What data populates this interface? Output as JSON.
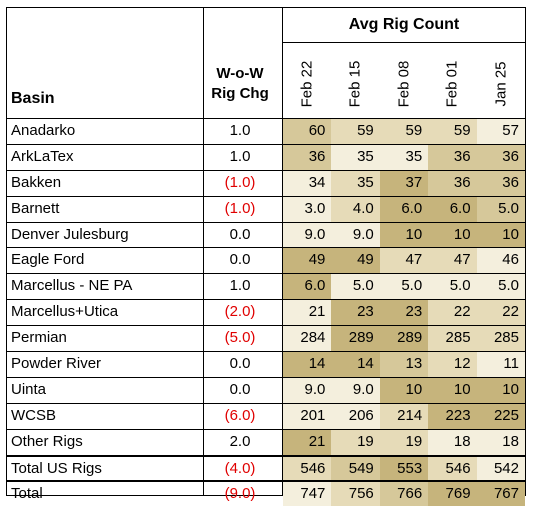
{
  "header": {
    "basin": "Basin",
    "chg_line1": "W-o-W",
    "chg_line2": "Rig Chg",
    "avg": "Avg Rig Count",
    "dates": [
      "Feb 22",
      "Feb 15",
      "Feb 08",
      "Feb 01",
      "Jan 25"
    ]
  },
  "rows": [
    {
      "basin": "Anadarko",
      "chg": "1.0",
      "neg": false,
      "vals": [
        "60",
        "59",
        "59",
        "59",
        "57"
      ],
      "shade": [
        3,
        2,
        2,
        2,
        1
      ]
    },
    {
      "basin": "ArkLaTex",
      "chg": "1.0",
      "neg": false,
      "vals": [
        "36",
        "35",
        "35",
        "36",
        "36"
      ],
      "shade": [
        3,
        1,
        1,
        3,
        3
      ]
    },
    {
      "basin": "Bakken",
      "chg": "(1.0)",
      "neg": true,
      "vals": [
        "34",
        "35",
        "37",
        "36",
        "36"
      ],
      "shade": [
        1,
        2,
        4,
        3,
        3
      ]
    },
    {
      "basin": "Barnett",
      "chg": "(1.0)",
      "neg": true,
      "vals": [
        "3.0",
        "4.0",
        "6.0",
        "6.0",
        "5.0"
      ],
      "shade": [
        1,
        2,
        4,
        4,
        3
      ]
    },
    {
      "basin": "Denver Julesburg",
      "chg": "0.0",
      "neg": false,
      "vals": [
        "9.0",
        "9.0",
        "10",
        "10",
        "10"
      ],
      "shade": [
        1,
        1,
        4,
        4,
        4
      ]
    },
    {
      "basin": "Eagle Ford",
      "chg": "0.0",
      "neg": false,
      "vals": [
        "49",
        "49",
        "47",
        "47",
        "46"
      ],
      "shade": [
        4,
        4,
        2,
        2,
        1
      ]
    },
    {
      "basin": "Marcellus - NE PA",
      "chg": "1.0",
      "neg": false,
      "vals": [
        "6.0",
        "5.0",
        "5.0",
        "5.0",
        "5.0"
      ],
      "shade": [
        4,
        1,
        1,
        1,
        1
      ]
    },
    {
      "basin": "Marcellus+Utica",
      "chg": "(2.0)",
      "neg": true,
      "vals": [
        "21",
        "23",
        "23",
        "22",
        "22"
      ],
      "shade": [
        1,
        4,
        4,
        2,
        2
      ]
    },
    {
      "basin": "Permian",
      "chg": "(5.0)",
      "neg": true,
      "vals": [
        "284",
        "289",
        "289",
        "285",
        "285"
      ],
      "shade": [
        1,
        4,
        4,
        2,
        2
      ]
    },
    {
      "basin": "Powder River",
      "chg": "0.0",
      "neg": false,
      "vals": [
        "14",
        "14",
        "13",
        "12",
        "11"
      ],
      "shade": [
        4,
        4,
        3,
        2,
        1
      ]
    },
    {
      "basin": "Uinta",
      "chg": "0.0",
      "neg": false,
      "vals": [
        "9.0",
        "9.0",
        "10",
        "10",
        "10"
      ],
      "shade": [
        1,
        1,
        4,
        4,
        4
      ]
    },
    {
      "basin": "WCSB",
      "chg": "(6.0)",
      "neg": true,
      "vals": [
        "201",
        "206",
        "214",
        "223",
        "225"
      ],
      "shade": [
        1,
        1,
        2,
        4,
        4
      ]
    },
    {
      "basin": "Other Rigs",
      "chg": "2.0",
      "neg": false,
      "vals": [
        "21",
        "19",
        "19",
        "18",
        "18"
      ],
      "shade": [
        4,
        2,
        2,
        1,
        1
      ]
    },
    {
      "basin": "Total US Rigs",
      "chg": "(4.0)",
      "neg": true,
      "vals": [
        "546",
        "549",
        "553",
        "546",
        "542"
      ],
      "shade": [
        2,
        3,
        4,
        2,
        1
      ]
    },
    {
      "basin": "Total",
      "chg": "(9.0)",
      "neg": true,
      "vals": [
        "747",
        "756",
        "766",
        "769",
        "767"
      ],
      "shade": [
        1,
        2,
        3,
        4,
        4
      ]
    }
  ],
  "colors": {
    "shade1": "#f4efdd",
    "shade2": "#e6dbb8",
    "shade3": "#d6c89a",
    "shade4": "#c6b47c",
    "negative": "#e00000"
  }
}
